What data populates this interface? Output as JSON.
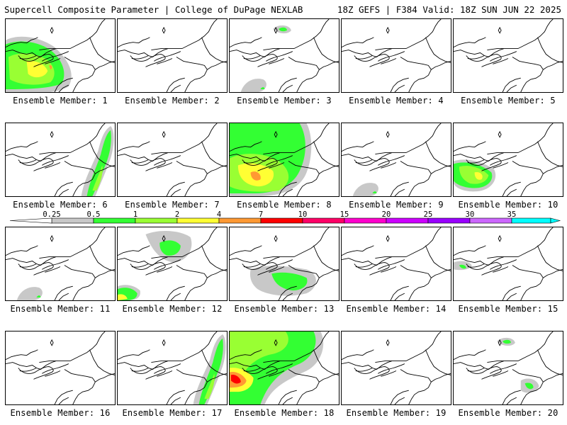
{
  "header": {
    "title": "Supercell Composite Parameter | College of DuPage NEXLAB",
    "run_info": "18Z GEFS | F384 Valid: 18Z SUN JUN 22 2025"
  },
  "members": [
    {
      "label": "Ensemble Member: 1",
      "blobs": [
        "ohio-big"
      ]
    },
    {
      "label": "Ensemble Member: 2",
      "blobs": []
    },
    {
      "label": "Ensemble Member: 3",
      "blobs": [
        "top-small",
        "sw-gray"
      ]
    },
    {
      "label": "Ensemble Member: 4",
      "blobs": []
    },
    {
      "label": "Ensemble Member: 5",
      "blobs": []
    },
    {
      "label": "Ensemble Member: 6",
      "blobs": [
        "ne-band"
      ]
    },
    {
      "label": "Ensemble Member: 7",
      "blobs": []
    },
    {
      "label": "Ensemble Member: 8",
      "blobs": [
        "wide-big"
      ]
    },
    {
      "label": "Ensemble Member: 9",
      "blobs": [
        "sw-gray"
      ]
    },
    {
      "label": "Ensemble Member: 10",
      "blobs": [
        "ohio-yellow"
      ]
    },
    {
      "label": "Ensemble Member: 11",
      "blobs": [
        "sw-gray"
      ]
    },
    {
      "label": "Ensemble Member: 12",
      "blobs": [
        "top-band",
        "sw-green"
      ]
    },
    {
      "label": "Ensemble Member: 13",
      "blobs": [
        "mid-band"
      ]
    },
    {
      "label": "Ensemble Member: 14",
      "blobs": []
    },
    {
      "label": "Ensemble Member: 15",
      "blobs": [
        "west-small"
      ]
    },
    {
      "label": "Ensemble Member: 16",
      "blobs": []
    },
    {
      "label": "Ensemble Member: 17",
      "blobs": [
        "ne-band"
      ]
    },
    {
      "label": "Ensemble Member: 18",
      "blobs": [
        "wide-red"
      ]
    },
    {
      "label": "Ensemble Member: 19",
      "blobs": []
    },
    {
      "label": "Ensemble Member: 20",
      "blobs": [
        "top-small",
        "east-small"
      ]
    }
  ],
  "colorbar": {
    "ticks": [
      "0.25",
      "0.5",
      "1",
      "2",
      "4",
      "7",
      "10",
      "15",
      "20",
      "25",
      "30",
      "35"
    ],
    "colors": [
      "#c8c8c8",
      "#33ff33",
      "#99ff33",
      "#ffff33",
      "#ff9933",
      "#ff0000",
      "#ff0066",
      "#ff00cc",
      "#cc00ff",
      "#9900ff",
      "#cc66ff",
      "#00ffff"
    ]
  }
}
